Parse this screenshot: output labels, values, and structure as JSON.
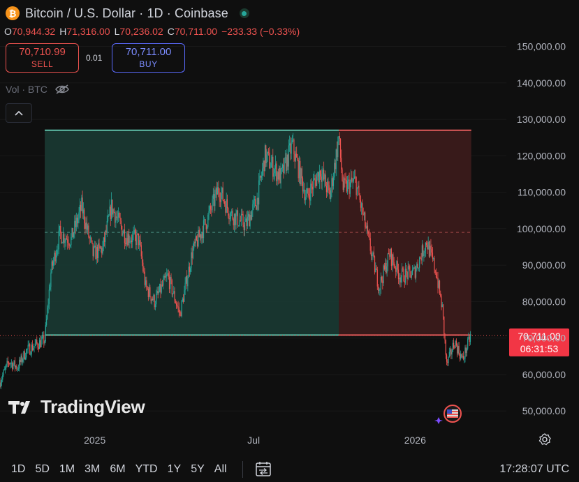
{
  "header": {
    "title": "Bitcoin / U.S. Dollar · 1D · Coinbase",
    "coin_glyph": "₿",
    "ohlc": [
      {
        "key": "O",
        "value": "70,944.32"
      },
      {
        "key": "H",
        "value": "71,316.00"
      },
      {
        "key": "L",
        "value": "70,236.02"
      },
      {
        "key": "C",
        "value": "70,711.00"
      },
      {
        "key": "",
        "value": "−233.33 (−0.33%)"
      }
    ],
    "sell_price": "70,710.99",
    "sell_label": "SELL",
    "spread": "0.01",
    "buy_price": "70,711.00",
    "buy_label": "BUY",
    "volume_label": "Vol · BTC"
  },
  "footer": {
    "timeframes": [
      "1D",
      "5D",
      "1M",
      "3M",
      "6M",
      "YTD",
      "1Y",
      "5Y",
      "All"
    ],
    "clock": "17:28:07 UTC"
  },
  "watermark": "TradingView",
  "colors": {
    "up": "#26a69a",
    "down": "#ef5350",
    "box_green": "#1a3a33",
    "box_red": "#3d1c1c"
  },
  "chart_data": {
    "type": "candlestick",
    "symbol": "BTCUSD",
    "interval": "1D",
    "y_ticks": [
      50000,
      60000,
      70000,
      80000,
      90000,
      100000,
      110000,
      120000,
      130000,
      140000,
      150000
    ],
    "y_tick_labels": [
      "50,000.00",
      "60,000.00",
      "70,000.00",
      "80,000.00",
      "90,000.00",
      "100,000.00",
      "110,000.00",
      "120,000.00",
      "130,000.00",
      "140,000.00",
      "150,000.00"
    ],
    "ylim": [
      46000,
      157000
    ],
    "x_ticks": [
      {
        "label": "2025",
        "date": "2025-01-01"
      },
      {
        "label": "Jul",
        "date": "2025-07-01"
      },
      {
        "label": "2026",
        "date": "2026-01-01"
      }
    ],
    "xlim": [
      "2024-09-15",
      "2026-04-15"
    ],
    "last_price": {
      "value": 70711,
      "label": "70,711.00",
      "countdown": "06:31:53"
    },
    "range_box": {
      "top": 127000,
      "bottom": 70800,
      "mid": 99000,
      "start": "2024-11-05",
      "split": "2025-10-06",
      "end": "2026-03-06"
    },
    "price_path": [
      [
        "2024-09-15",
        58000
      ],
      [
        "2024-09-25",
        63500
      ],
      [
        "2024-10-05",
        62000
      ],
      [
        "2024-10-15",
        66500
      ],
      [
        "2024-10-25",
        68000
      ],
      [
        "2024-11-05",
        69500
      ],
      [
        "2024-11-12",
        88000
      ],
      [
        "2024-11-22",
        98500
      ],
      [
        "2024-12-05",
        97000
      ],
      [
        "2024-12-17",
        106000
      ],
      [
        "2024-12-30",
        93000
      ],
      [
        "2025-01-10",
        94500
      ],
      [
        "2025-01-20",
        106000
      ],
      [
        "2025-02-05",
        98000
      ],
      [
        "2025-02-20",
        97000
      ],
      [
        "2025-02-28",
        84000
      ],
      [
        "2025-03-10",
        80000
      ],
      [
        "2025-03-25",
        87000
      ],
      [
        "2025-04-08",
        76500
      ],
      [
        "2025-04-22",
        93500
      ],
      [
        "2025-05-10",
        103000
      ],
      [
        "2025-05-22",
        111000
      ],
      [
        "2025-06-05",
        104000
      ],
      [
        "2025-06-22",
        101000
      ],
      [
        "2025-07-05",
        108000
      ],
      [
        "2025-07-14",
        120000
      ],
      [
        "2025-08-01",
        114000
      ],
      [
        "2025-08-14",
        123000
      ],
      [
        "2025-08-30",
        108500
      ],
      [
        "2025-09-15",
        116000
      ],
      [
        "2025-09-26",
        109000
      ],
      [
        "2025-10-06",
        125000
      ],
      [
        "2025-10-11",
        111000
      ],
      [
        "2025-10-25",
        113000
      ],
      [
        "2025-11-05",
        101000
      ],
      [
        "2025-11-21",
        84000
      ],
      [
        "2025-12-03",
        93000
      ],
      [
        "2025-12-15",
        87000
      ],
      [
        "2025-12-31",
        88000
      ],
      [
        "2026-01-14",
        96500
      ],
      [
        "2026-01-25",
        88000
      ],
      [
        "2026-02-01",
        78000
      ],
      [
        "2026-02-06",
        62500
      ],
      [
        "2026-02-15",
        69000
      ],
      [
        "2026-02-24",
        64000
      ],
      [
        "2026-03-06",
        71000
      ]
    ]
  }
}
